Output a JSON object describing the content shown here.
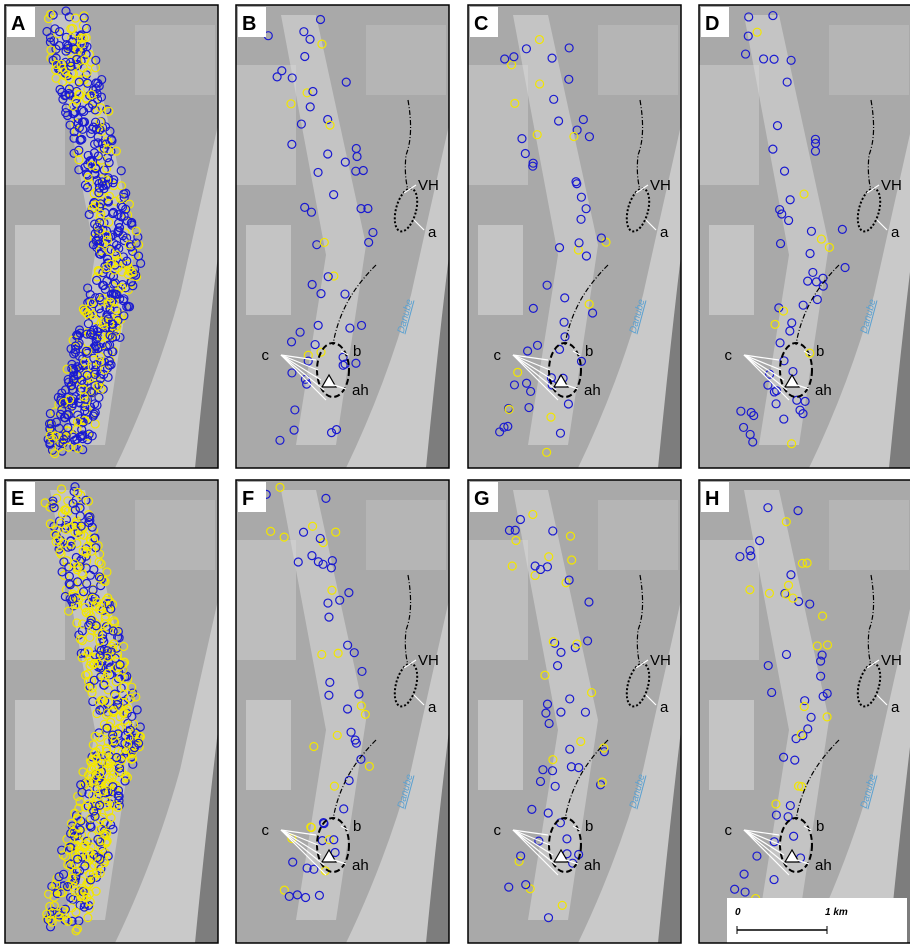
{
  "panels": [
    {
      "letter": "A"
    },
    {
      "letter": "B",
      "annotations": [
        "VH",
        "a",
        "c",
        "b",
        "ah",
        "Danube"
      ]
    },
    {
      "letter": "C",
      "annotations": [
        "VH",
        "a",
        "c",
        "b",
        "ah",
        "Danube"
      ]
    },
    {
      "letter": "D",
      "annotations": [
        "VH",
        "a",
        "c",
        "b",
        "ah",
        "Danube"
      ]
    },
    {
      "letter": "E"
    },
    {
      "letter": "F",
      "annotations": [
        "VH",
        "a",
        "c",
        "b",
        "ah",
        "Danube"
      ]
    },
    {
      "letter": "G",
      "annotations": [
        "VH",
        "a",
        "c",
        "b",
        "ah",
        "Danube"
      ]
    },
    {
      "letter": "H",
      "annotations": [
        "VH",
        "a",
        "c",
        "b",
        "ah",
        "Danube"
      ]
    }
  ],
  "scale_bar": {
    "start": "0",
    "end": "1 km"
  }
}
